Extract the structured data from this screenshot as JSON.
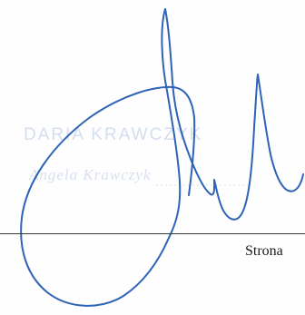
{
  "stamp": {
    "name_line": "DARIA KRAWCZYK",
    "sub_line": "Angela Krawczyk"
  },
  "signature": {
    "ink_color": "#2d63b8"
  },
  "footer": {
    "page_label": "Strona"
  }
}
